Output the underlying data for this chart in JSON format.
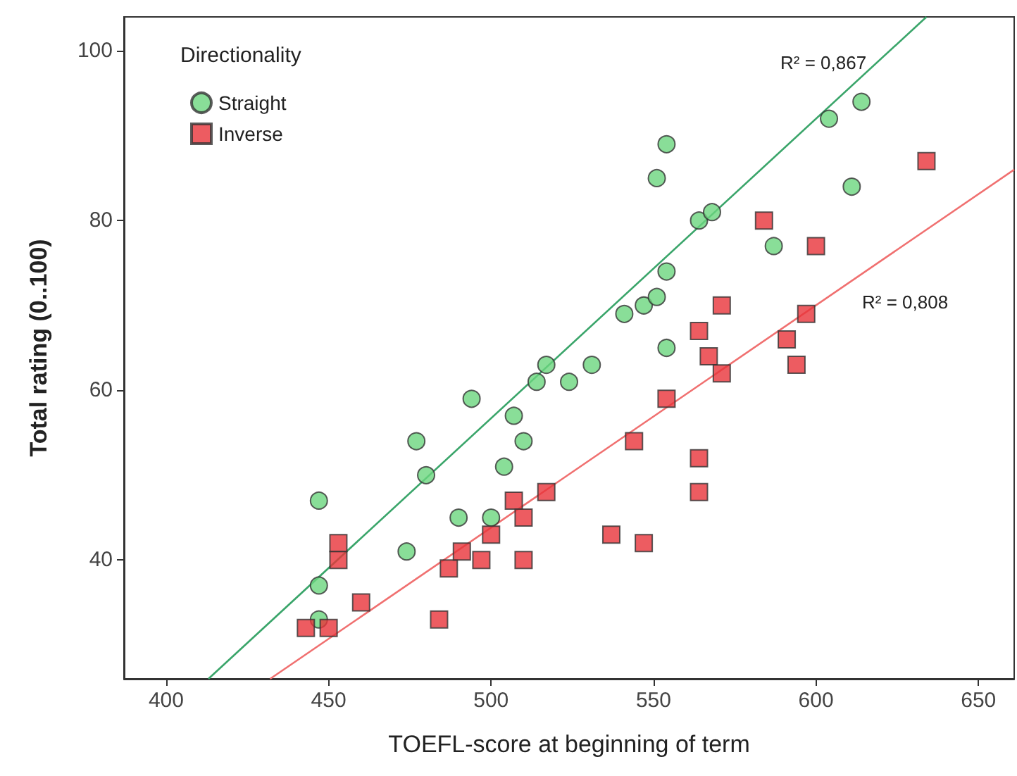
{
  "chart_data": {
    "type": "scatter",
    "xlabel": "TOEFL-score at beginning of term",
    "ylabel": "Total rating (0..100)",
    "legend_title": "Directionality",
    "legend": "top left",
    "grid": false,
    "xlim": [
      387,
      661
    ],
    "xticks": [
      400,
      450,
      500,
      550,
      600,
      650
    ],
    "ylim": [
      26,
      104
    ],
    "yticks": [
      40,
      60,
      80,
      100
    ],
    "series": [
      {
        "name": "Straight",
        "marker": "circle",
        "color": "#6bd67e",
        "x": [
          447,
          447,
          447,
          474,
          477,
          480,
          490,
          494,
          500,
          504,
          507,
          510,
          514,
          517,
          524,
          531,
          541,
          547,
          551,
          554,
          554,
          551,
          554,
          564,
          568,
          587,
          604,
          611,
          614
        ],
        "values": [
          47,
          37,
          33,
          41,
          54,
          50,
          45,
          59,
          45,
          51,
          57,
          54,
          61,
          63,
          61,
          63,
          69,
          70,
          71,
          65,
          74,
          85,
          89,
          80,
          81,
          77,
          92,
          84,
          94
        ]
      },
      {
        "name": "Inverse",
        "marker": "square",
        "color": "#e8333a",
        "x": [
          443,
          450,
          453,
          453,
          460,
          484,
          487,
          491,
          497,
          500,
          507,
          510,
          510,
          517,
          537,
          544,
          547,
          554,
          564,
          564,
          564,
          567,
          571,
          571,
          584,
          591,
          594,
          597,
          600,
          634
        ],
        "values": [
          32,
          32,
          42,
          40,
          35,
          33,
          39,
          41,
          40,
          43,
          47,
          40,
          45,
          48,
          43,
          54,
          42,
          59,
          67,
          52,
          48,
          64,
          70,
          62,
          80,
          66,
          63,
          69,
          77,
          87
        ]
      },
      {
        "type": "line",
        "marker": "none",
        "color": "#3aa56a",
        "x": [
          413,
          634
        ],
        "values": [
          26,
          104
        ]
      },
      {
        "type": "line",
        "marker": "none",
        "color": "#f07070",
        "x": [
          432,
          661
        ],
        "values": [
          26,
          86
        ]
      }
    ],
    "annotations": [
      "R² = 0,867",
      "R² = 0,808"
    ]
  }
}
